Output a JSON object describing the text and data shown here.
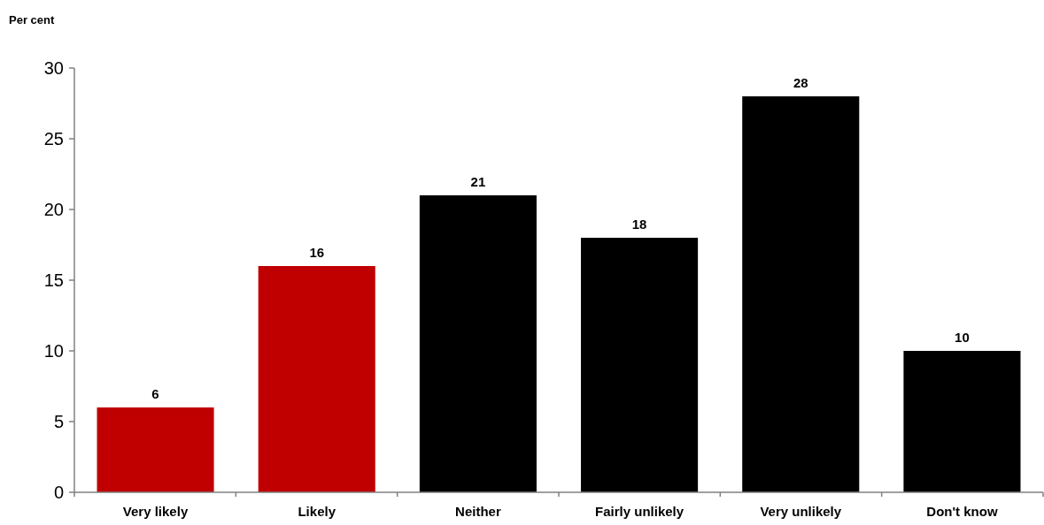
{
  "chart_data": {
    "type": "bar",
    "ylabel": "Per cent",
    "categories": [
      "Very likely",
      "Likely",
      "Neither",
      "Fairly unlikely",
      "Very unlikely",
      "Don't know"
    ],
    "values": [
      6,
      16,
      21,
      18,
      28,
      10
    ],
    "colors": [
      "#c00000",
      "#c00000",
      "#000000",
      "#000000",
      "#000000",
      "#000000"
    ],
    "ylim": [
      0,
      30
    ],
    "yticks": [
      0,
      5,
      10,
      15,
      20,
      25,
      30
    ],
    "grid": false,
    "data_labels": true
  }
}
